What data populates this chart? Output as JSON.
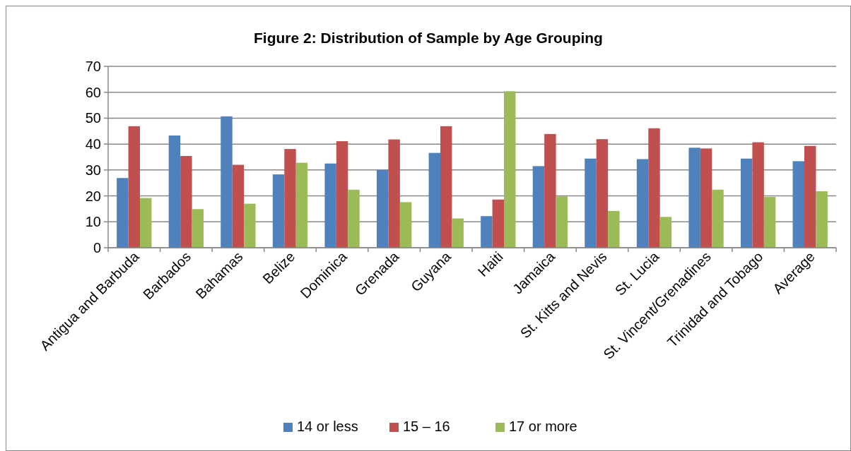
{
  "chart_data": {
    "type": "bar",
    "title": "Figure 2: Distribution of Sample by Age Grouping",
    "categories": [
      "Antigua and Barbuda",
      "Barbados",
      "Bahamas",
      "Belize",
      "Dominica",
      "Grenada",
      "Guyana",
      "Haiti",
      "Jamaica",
      "St. Kitts and Nevis",
      "St. Lucia",
      "St. Vincent/Grenadines",
      "Trinidad and Tobago",
      "Average"
    ],
    "series": [
      {
        "name": "14 or less",
        "color": "#4f81bd",
        "values": [
          26.9,
          43.3,
          50.7,
          28.3,
          32.5,
          30.0,
          36.6,
          12.2,
          31.5,
          34.4,
          34.2,
          38.6,
          34.4,
          33.4
        ]
      },
      {
        "name": "15 – 16",
        "color": "#c0504d",
        "values": [
          46.9,
          35.4,
          32.0,
          38.1,
          41.1,
          41.8,
          46.9,
          18.6,
          43.9,
          41.9,
          46.1,
          38.3,
          40.7,
          39.3
        ]
      },
      {
        "name": "17 or more",
        "color": "#9bbb59",
        "values": [
          19.2,
          14.9,
          17.0,
          32.8,
          22.4,
          17.6,
          11.3,
          60.4,
          19.8,
          14.2,
          11.9,
          22.4,
          19.6,
          21.8
        ]
      }
    ],
    "ylim": [
      0,
      70
    ],
    "yticks": [
      0,
      10,
      20,
      30,
      40,
      50,
      60,
      70
    ],
    "grid": "y",
    "legend": "bottom"
  }
}
